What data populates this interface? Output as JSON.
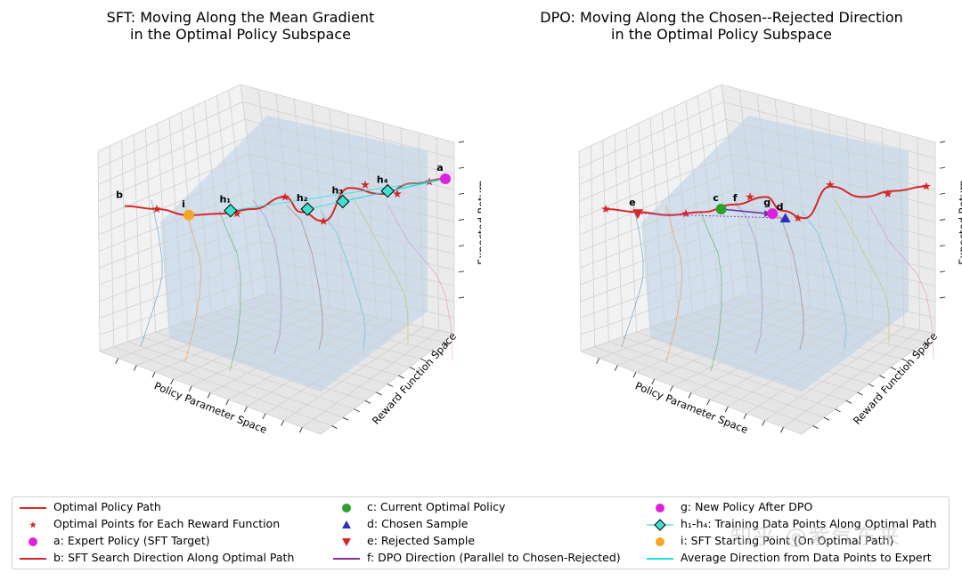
{
  "chart_data": [
    {
      "type": "3d-line",
      "title_lines": [
        "SFT: Moving Along the Mean Gradient",
        "in the Optimal Policy Subspace"
      ],
      "xlabel": "Policy Parameter Space",
      "ylabel": "Reward Function Space",
      "zlabel": "Expected Return",
      "series": [
        {
          "name": "Optimal Policy Path",
          "color": "#d62728",
          "path_x": [
            0.0,
            0.1,
            0.2,
            0.3,
            0.4,
            0.5,
            0.55,
            0.62,
            0.7,
            0.8,
            0.9,
            1.0
          ],
          "path_z": [
            0.52,
            0.5,
            0.46,
            0.47,
            0.5,
            0.58,
            0.48,
            0.42,
            0.64,
            0.6,
            0.67,
            0.7
          ]
        },
        {
          "name": "Optimal Points for Each Reward Function",
          "color": "#d62728",
          "marker": "star",
          "x": [
            0.1,
            0.35,
            0.5,
            0.62,
            0.75,
            0.85,
            0.95
          ],
          "z": [
            0.5,
            0.47,
            0.58,
            0.42,
            0.66,
            0.6,
            0.68
          ]
        }
      ],
      "points": [
        {
          "label": "a",
          "name": "Expert Policy (SFT Target)",
          "marker": "circle",
          "color": "#e020e0",
          "x": 1.0,
          "z": 0.7
        },
        {
          "label": "b",
          "name": "SFT Search Direction Along Optimal Path",
          "marker": "text",
          "x": 0.0,
          "z": 0.52
        },
        {
          "label": "i",
          "name": "SFT Starting Point (On Optimal Path)",
          "marker": "circle",
          "color": "#f5a623",
          "x": 0.2,
          "z": 0.46
        },
        {
          "label": "h₁",
          "marker": "diamond",
          "color": "#40e0d0",
          "x": 0.33,
          "z": 0.49
        },
        {
          "label": "h₂",
          "marker": "diamond",
          "color": "#40e0d0",
          "x": 0.57,
          "z": 0.5
        },
        {
          "label": "h₃",
          "marker": "diamond",
          "color": "#40e0d0",
          "x": 0.68,
          "z": 0.55
        },
        {
          "label": "h₄",
          "marker": "diamond",
          "color": "#40e0d0",
          "x": 0.82,
          "z": 0.62
        }
      ]
    },
    {
      "type": "3d-line",
      "title_lines": [
        "DPO: Moving Along the Chosen--Rejected Direction",
        "in the Optimal Policy Subspace"
      ],
      "xlabel": "Policy Parameter Space",
      "ylabel": "Reward Function Space",
      "zlabel": "Expected Return",
      "series": [
        {
          "name": "Optimal Policy Path",
          "color": "#d62728",
          "path_x": [
            0.0,
            0.1,
            0.2,
            0.3,
            0.4,
            0.5,
            0.55,
            0.62,
            0.7,
            0.8,
            0.9,
            1.0
          ],
          "path_z": [
            0.5,
            0.48,
            0.46,
            0.48,
            0.53,
            0.58,
            0.49,
            0.44,
            0.65,
            0.58,
            0.62,
            0.65
          ]
        },
        {
          "name": "Optimal Points for Each Reward Function",
          "color": "#d62728",
          "marker": "star",
          "x": [
            0.0,
            0.25,
            0.45,
            0.6,
            0.7,
            0.88,
            1.0
          ],
          "z": [
            0.5,
            0.47,
            0.58,
            0.44,
            0.66,
            0.6,
            0.65
          ]
        }
      ],
      "points": [
        {
          "label": "c",
          "name": "Current Optimal Policy",
          "marker": "circle",
          "color": "#2ca02c",
          "x": 0.36,
          "z": 0.5
        },
        {
          "label": "d",
          "name": "Chosen Sample",
          "marker": "triangle-up",
          "color": "#3030c0",
          "x": 0.56,
          "z": 0.44
        },
        {
          "label": "e",
          "name": "Rejected Sample",
          "marker": "triangle-down",
          "color": "#d62728",
          "x": 0.1,
          "z": 0.47
        },
        {
          "label": "f",
          "name": "DPO Direction (Parallel to Chosen-Rejected)",
          "marker": "arrow",
          "color": "#7030a0",
          "x": 0.42,
          "z": 0.5
        },
        {
          "label": "g",
          "name": "New Policy After DPO",
          "marker": "circle",
          "color": "#e020e0",
          "x": 0.52,
          "z": 0.47
        }
      ]
    }
  ],
  "legend": {
    "items": [
      {
        "label": "Optimal Policy Path",
        "symbol": "line",
        "color": "#d62728"
      },
      {
        "label": "Optimal Points for Each Reward Function",
        "symbol": "star",
        "color": "#d62728"
      },
      {
        "label": "a: Expert Policy (SFT Target)",
        "symbol": "circle",
        "color": "#e020e0"
      },
      {
        "label": "b: SFT Search Direction Along Optimal Path",
        "symbol": "line",
        "color": "#d62728"
      },
      {
        "label": "c: Current Optimal Policy",
        "symbol": "circle",
        "color": "#2ca02c"
      },
      {
        "label": "d: Chosen Sample",
        "symbol": "triangle-up",
        "color": "#3030c0"
      },
      {
        "label": "e: Rejected Sample",
        "symbol": "triangle-down",
        "color": "#d62728"
      },
      {
        "label": "f: DPO Direction (Parallel to Chosen-Rejected)",
        "symbol": "line",
        "color": "#8030a0"
      },
      {
        "label": "g: New Policy After DPO",
        "symbol": "circle",
        "color": "#e020e0"
      },
      {
        "label": "h₁-h₄: Training Data Points Along Optimal Path",
        "symbol": "diamond",
        "color": "#40e0d0"
      },
      {
        "label": "i: SFT Starting Point (On Optimal Path)",
        "symbol": "circle",
        "color": "#f5a623"
      },
      {
        "label": "Average Direction from Data Points to Expert",
        "symbol": "line",
        "color": "#20e0e0"
      }
    ]
  },
  "watermark": "知乎 @紫气东来"
}
